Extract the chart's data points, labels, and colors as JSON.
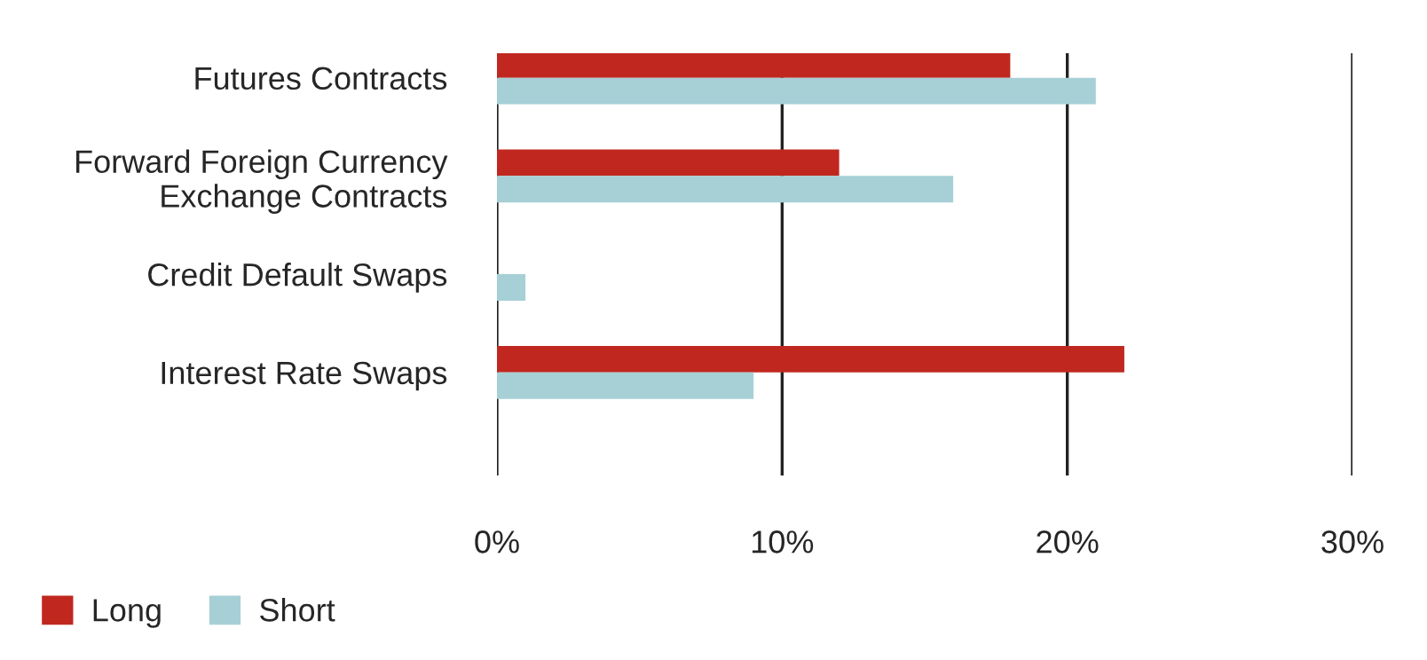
{
  "chart_data": {
    "type": "bar",
    "orientation": "horizontal",
    "categories": [
      "Futures Contracts",
      "Forward Foreign Currency\nExchange Contracts",
      "Credit Default Swaps",
      "Interest Rate Swaps"
    ],
    "series": [
      {
        "name": "Long",
        "color": "#c0281f",
        "values": [
          18,
          12,
          null,
          22
        ]
      },
      {
        "name": "Short",
        "color": "#a6d0d6",
        "values": [
          21,
          16,
          1,
          9
        ]
      }
    ],
    "xlim": [
      0,
      30
    ],
    "xticks": [
      {
        "value": 0,
        "label": "0%"
      },
      {
        "value": 10,
        "label": "10%"
      },
      {
        "value": 20,
        "label": "20%"
      },
      {
        "value": 30,
        "label": "30%"
      }
    ],
    "grid": "x",
    "legend": "bottom left"
  }
}
